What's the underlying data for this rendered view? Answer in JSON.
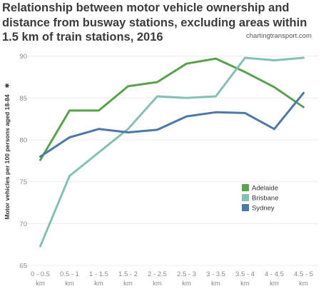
{
  "chart_data": {
    "type": "line",
    "title": "Relationship between motor vehicle ownership and distance from busway stations, excluding areas within 1.5 km of train stations, 2016",
    "source": "chartingtransport.com",
    "ylabel": "Motor vehicles per 100 persons aged 18-84",
    "ylabel_marker": "✱",
    "xlabel": "",
    "ylim": [
      64.5,
      91.5
    ],
    "yticks": [
      "65",
      "70",
      "75",
      "80",
      "85",
      "90"
    ],
    "grid": true,
    "legend_position": "right-middle",
    "categories": [
      [
        "0 - 0.5",
        "km"
      ],
      [
        "0.5 - 1",
        "km"
      ],
      [
        "1 - 1.5",
        "km"
      ],
      [
        "1.5 - 2",
        "km"
      ],
      [
        "2 - 2.5",
        "km"
      ],
      [
        "2.5 - 3",
        "km"
      ],
      [
        "3 - 3.5",
        "km"
      ],
      [
        "3.5 - 4",
        "km"
      ],
      [
        "4 - 4.5",
        "km"
      ],
      [
        "4.5 - 5",
        "km"
      ]
    ],
    "series": [
      {
        "name": "Adelaide",
        "color": "#59a14f",
        "values": [
          77.6,
          83.5,
          83.5,
          86.4,
          86.9,
          89.1,
          89.7,
          88.1,
          86.3,
          83.9
        ]
      },
      {
        "name": "Brisbane",
        "color": "#85bfb5",
        "values": [
          67.3,
          75.7,
          78.5,
          81.3,
          85.2,
          85.0,
          85.2,
          89.8,
          89.5,
          89.8
        ]
      },
      {
        "name": "Sydney",
        "color": "#4e79a7",
        "values": [
          78.0,
          80.3,
          81.3,
          80.9,
          81.2,
          82.8,
          83.3,
          83.2,
          81.3,
          85.6
        ]
      }
    ]
  }
}
